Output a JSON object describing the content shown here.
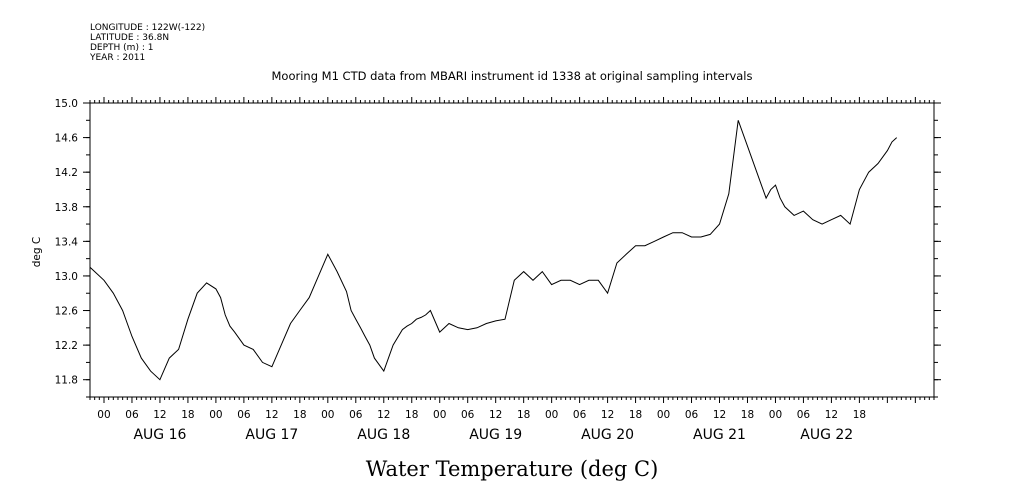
{
  "meta": {
    "longitude": "LONGITUDE : 122W(-122)",
    "latitude": "LATITUDE : 36.8N",
    "depth": "DEPTH (m) : 1",
    "year": "YEAR : 2011"
  },
  "chart_data": {
    "type": "line",
    "title": "Mooring M1 CTD data from MBARI instrument id 1338 at original sampling intervals",
    "bottom_title": "Water Temperature (deg C)",
    "ylabel": "deg C",
    "ylim": [
      11.6,
      15.0
    ],
    "yticks": [
      "11.8",
      "12.2",
      "12.6",
      "13.0",
      "13.4",
      "13.8",
      "14.2",
      "14.6",
      "15.0"
    ],
    "x_unit": "hours since AUG 16 00:00",
    "xlim": [
      -15,
      166
    ],
    "hour_ticks": [
      "00",
      "06",
      "12",
      "18",
      "00",
      "06",
      "12",
      "18",
      "00",
      "06",
      "12",
      "18",
      "00",
      "06",
      "12",
      "18",
      "00",
      "06",
      "12",
      "18",
      "00",
      "06",
      "12",
      "18",
      "00",
      "06",
      "12",
      "18"
    ],
    "hour_tick_positions": [
      -12,
      -6,
      0,
      6,
      12,
      18,
      24,
      30,
      36,
      42,
      48,
      54,
      60,
      66,
      72,
      78,
      84,
      90,
      96,
      102,
      108,
      114,
      120,
      126,
      132,
      138,
      144,
      150
    ],
    "day_labels": [
      "AUG 16",
      "AUG 17",
      "AUG 18",
      "AUG 19",
      "AUG 20",
      "AUG 21",
      "AUG 22"
    ],
    "day_label_positions": [
      0,
      24,
      48,
      72,
      96,
      120,
      143
    ],
    "grid": false,
    "series": [
      {
        "color": "#000000",
        "x": [
          -15,
          -14,
          -12,
          -10,
          -8,
          -6,
          -4,
          -2,
          0,
          2,
          4,
          6,
          8,
          10,
          12,
          13,
          14,
          15,
          16,
          18,
          20,
          22,
          24,
          26,
          28,
          30,
          32,
          34,
          36,
          38,
          40,
          41,
          42,
          43,
          44,
          45,
          46,
          48,
          50,
          52,
          53,
          54,
          55,
          56,
          57,
          58,
          60,
          62,
          64,
          66,
          68,
          70,
          72,
          74,
          76,
          78,
          80,
          82,
          84,
          86,
          88,
          90,
          92,
          94,
          96,
          98,
          100,
          101,
          102,
          104,
          106,
          108,
          110,
          112,
          114,
          116,
          118,
          120,
          122,
          124,
          126,
          128,
          130,
          131,
          132,
          133,
          134,
          136,
          138,
          140,
          142,
          144,
          146,
          148,
          150,
          152,
          154,
          156,
          157,
          158
        ],
        "y": [
          13.1,
          13.05,
          12.95,
          12.8,
          12.6,
          12.3,
          12.05,
          11.9,
          11.8,
          12.05,
          12.15,
          12.5,
          12.8,
          12.92,
          12.85,
          12.75,
          12.55,
          12.42,
          12.35,
          12.2,
          12.15,
          12.0,
          11.95,
          12.2,
          12.45,
          12.6,
          12.75,
          13.0,
          13.25,
          13.05,
          12.82,
          12.6,
          12.5,
          12.4,
          12.3,
          12.2,
          12.05,
          11.9,
          12.2,
          12.38,
          12.42,
          12.45,
          12.5,
          12.52,
          12.55,
          12.6,
          12.35,
          12.45,
          12.4,
          12.38,
          12.4,
          12.45,
          12.48,
          12.5,
          12.95,
          13.05,
          12.95,
          13.05,
          12.9,
          12.95,
          12.95,
          12.9,
          12.95,
          12.95,
          12.8,
          13.15,
          13.25,
          13.3,
          13.35,
          13.35,
          13.4,
          13.45,
          13.5,
          13.5,
          13.45,
          13.45,
          13.48,
          13.6,
          13.95,
          14.8,
          14.5,
          14.2,
          13.9,
          14.0,
          14.05,
          13.9,
          13.8,
          13.7,
          13.75,
          13.65,
          13.6,
          13.65,
          13.7,
          13.6,
          14.0,
          14.2,
          14.3,
          14.45,
          14.55,
          14.6
        ]
      }
    ]
  }
}
